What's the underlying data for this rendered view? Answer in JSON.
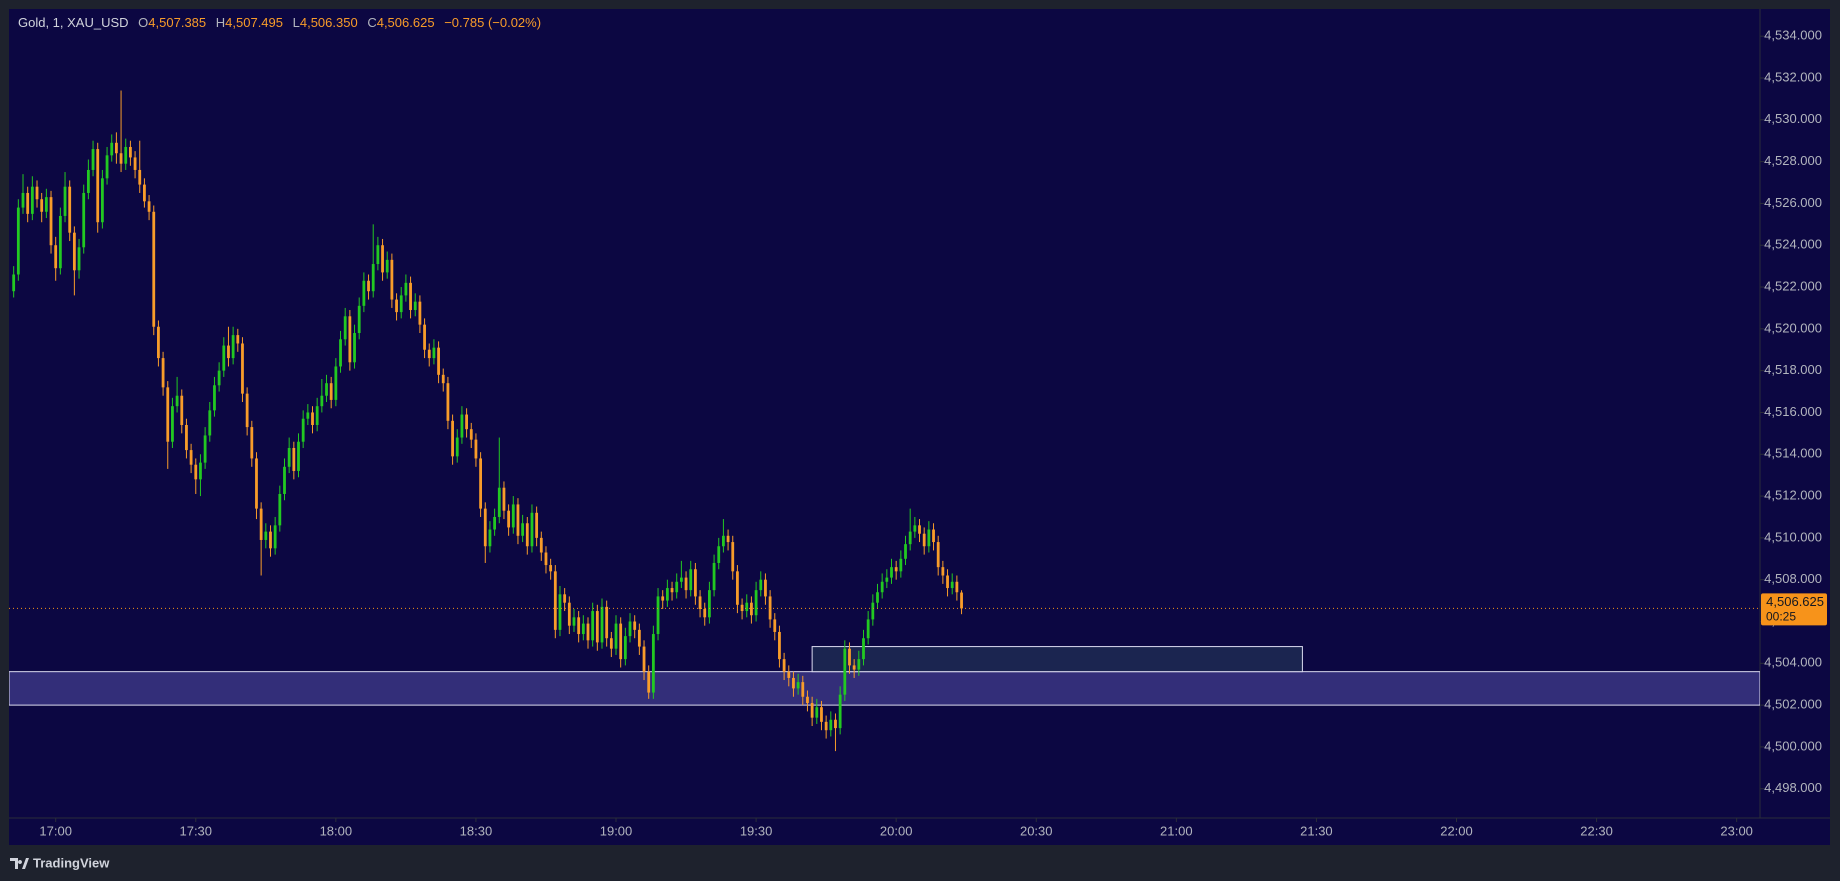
{
  "chart_data": {
    "type": "candlestick",
    "title": "Gold, 1, XAU_USD",
    "ohlc": [
      {
        "key": "O",
        "value": 4507.385,
        "label": "4,507.385"
      },
      {
        "key": "H",
        "value": 4507.495,
        "label": "4,507.495"
      },
      {
        "key": "L",
        "value": 4506.35,
        "label": "4,506.350"
      },
      {
        "key": "C",
        "value": 4506.625,
        "label": "4,506.625"
      }
    ],
    "change": {
      "value": -0.785,
      "label": "−0.785"
    },
    "change_pct": {
      "value": -0.02,
      "label": "(−0.02%)"
    },
    "up_color": "#22c922",
    "down_color": "#f89c2a",
    "x": [
      "16:51",
      "16:52",
      "16:53",
      "16:54",
      "16:55",
      "16:56",
      "16:57",
      "16:58",
      "16:59",
      "17:00",
      "17:01",
      "17:02",
      "17:03",
      "17:04",
      "17:05",
      "17:06",
      "17:07",
      "17:08",
      "17:09",
      "17:10",
      "17:11",
      "17:12",
      "17:13",
      "17:14",
      "17:15",
      "17:16",
      "17:17",
      "17:18",
      "17:19",
      "17:20",
      "17:21",
      "17:22",
      "17:23",
      "17:24",
      "17:25",
      "17:26",
      "17:27",
      "17:28",
      "17:29",
      "17:30",
      "17:31",
      "17:32",
      "17:33",
      "17:34",
      "17:35",
      "17:36",
      "17:37",
      "17:38",
      "17:39",
      "17:40",
      "17:41",
      "17:42",
      "17:43",
      "17:44",
      "17:45",
      "17:46",
      "17:47",
      "17:48",
      "17:49",
      "17:50",
      "17:51",
      "17:52",
      "17:53",
      "17:54",
      "17:55",
      "17:56",
      "17:57",
      "17:58",
      "17:59",
      "18:00",
      "18:01",
      "18:02",
      "18:03",
      "18:04",
      "18:05",
      "18:06",
      "18:07",
      "18:08",
      "18:09",
      "18:10",
      "18:11",
      "18:12",
      "18:13",
      "18:14",
      "18:15",
      "18:16",
      "18:17",
      "18:18",
      "18:19",
      "18:20",
      "18:21",
      "18:22",
      "18:23",
      "18:24",
      "18:25",
      "18:26",
      "18:27",
      "18:28",
      "18:29",
      "18:30",
      "18:31",
      "18:32",
      "18:33",
      "18:34",
      "18:35",
      "18:36",
      "18:37",
      "18:38",
      "18:39",
      "18:40",
      "18:41",
      "18:42",
      "18:43",
      "18:44",
      "18:45",
      "18:46",
      "18:47",
      "18:48",
      "18:49",
      "18:50",
      "18:51",
      "18:52",
      "18:53",
      "18:54",
      "18:55",
      "18:56",
      "18:57",
      "18:58",
      "18:59",
      "19:00",
      "19:01",
      "19:02",
      "19:03",
      "19:04",
      "19:05",
      "19:06",
      "19:07",
      "19:08",
      "19:09",
      "19:10",
      "19:11",
      "19:12",
      "19:13",
      "19:14",
      "19:15",
      "19:16",
      "19:17",
      "19:18",
      "19:19",
      "19:20",
      "19:21",
      "19:22",
      "19:23",
      "19:24",
      "19:25",
      "19:26",
      "19:27",
      "19:28",
      "19:29",
      "19:30",
      "19:31",
      "19:32",
      "19:33",
      "19:34",
      "19:35",
      "19:36",
      "19:37",
      "19:38",
      "19:39",
      "19:40",
      "19:41",
      "19:42",
      "19:43",
      "19:44",
      "19:45",
      "19:46",
      "19:47",
      "19:48",
      "19:49",
      "19:50",
      "19:51",
      "19:52",
      "19:53",
      "19:54",
      "19:55",
      "19:56",
      "19:57",
      "19:58",
      "19:59",
      "20:00",
      "20:01",
      "20:02",
      "20:03",
      "20:04",
      "20:05",
      "20:06",
      "20:07",
      "20:08",
      "20:09",
      "20:10",
      "20:11",
      "20:12",
      "20:13",
      "20:14"
    ],
    "open": [
      4521.8,
      4522.6,
      4525.8,
      4526.5,
      4525.5,
      4526.8,
      4526.2,
      4525.6,
      4526.3,
      4524.0,
      4522.9,
      4525.4,
      4526.8,
      4524.6,
      4522.8,
      4523.9,
      4526.5,
      4527.6,
      4528.6,
      4525.1,
      4527.2,
      4528.3,
      4528.9,
      4528.4,
      4527.9,
      4528.7,
      4528.2,
      4527.6,
      4526.9,
      4526.1,
      4525.6,
      4520.1,
      4518.6,
      4517.2,
      4514.6,
      4516.3,
      4516.8,
      4515.4,
      4514.2,
      4513.5,
      4512.8,
      4513.6,
      4514.9,
      4516.1,
      4517.3,
      4518.0,
      4519.2,
      4518.6,
      4519.7,
      4519.3,
      4516.9,
      4515.3,
      4513.8,
      4511.4,
      4509.9,
      4510.3,
      4509.5,
      4510.6,
      4512.1,
      4513.4,
      4514.3,
      4513.2,
      4514.6,
      4515.7,
      4516.0,
      4515.4,
      4516.3,
      4516.8,
      4517.4,
      4516.6,
      4518.2,
      4519.5,
      4520.6,
      4518.4,
      4519.8,
      4521.1,
      4522.3,
      4521.8,
      4523.1,
      4524.0,
      4522.7,
      4523.3,
      4521.4,
      4520.8,
      4521.6,
      4522.2,
      4520.9,
      4521.3,
      4520.2,
      4519.0,
      4518.6,
      4519.1,
      4517.8,
      4517.4,
      4515.6,
      4513.9,
      4514.8,
      4515.9,
      4515.2,
      4514.7,
      4513.8,
      4511.4,
      4509.6,
      4510.4,
      4511.0,
      4512.4,
      4511.3,
      4510.5,
      4511.6,
      4510.1,
      4510.7,
      4509.6,
      4511.2,
      4510.0,
      4509.3,
      4508.7,
      4508.4,
      4505.6,
      4507.3,
      4506.9,
      4505.8,
      4506.2,
      4505.4,
      4505.9,
      4505.1,
      4506.5,
      4505.0,
      4506.7,
      4505.2,
      4504.7,
      4505.9,
      4504.2,
      4505.3,
      4506.0,
      4505.6,
      4504.8,
      4503.6,
      4502.6,
      4505.4,
      4507.2,
      4507.0,
      4507.6,
      4507.4,
      4507.9,
      4508.1,
      4507.5,
      4508.5,
      4507.2,
      4506.6,
      4506.2,
      4507.5,
      4508.8,
      4509.6,
      4510.1,
      4509.8,
      4508.4,
      4506.8,
      4506.5,
      4506.9,
      4506.3,
      4507.5,
      4508.0,
      4507.2,
      4506.1,
      4505.5,
      4504.2,
      4503.6,
      4503.3,
      4502.8,
      4503.1,
      4502.4,
      4502.1,
      4501.4,
      4501.9,
      4501.2,
      4500.8,
      4501.3,
      4500.9,
      4502.5,
      4504.7,
      4503.9,
      4503.7,
      4504.2,
      4505.2,
      4506.1,
      4506.9,
      4507.4,
      4507.9,
      4508.1,
      4508.6,
      4508.4,
      4509.0,
      4509.7,
      4510.3,
      4510.6,
      4510.2,
      4509.6,
      4510.4,
      4509.8,
      4508.6,
      4508.2,
      4507.6,
      4507.9,
      4507.385
    ],
    "high": [
      4523.0,
      4526.2,
      4527.4,
      4526.8,
      4527.3,
      4527.1,
      4526.5,
      4526.7,
      4526.6,
      4524.4,
      4525.8,
      4527.5,
      4527.1,
      4524.9,
      4524.3,
      4526.9,
      4528.1,
      4529.0,
      4528.9,
      4527.6,
      4528.7,
      4529.3,
      4529.4,
      4531.4,
      4529.1,
      4529.0,
      4528.5,
      4529.0,
      4527.2,
      4526.4,
      4525.9,
      4520.4,
      4518.9,
      4517.5,
      4516.7,
      4517.7,
      4517.1,
      4515.7,
      4514.5,
      4513.8,
      4514.0,
      4515.3,
      4516.5,
      4517.7,
      4518.4,
      4519.6,
      4520.1,
      4520.1,
      4520.0,
      4519.6,
      4517.2,
      4515.6,
      4514.1,
      4511.7,
      4510.7,
      4510.6,
      4511.0,
      4512.5,
      4513.8,
      4514.8,
      4514.6,
      4515.0,
      4516.1,
      4516.4,
      4516.3,
      4516.7,
      4517.6,
      4517.8,
      4517.7,
      4518.6,
      4519.9,
      4521.0,
      4520.9,
      4520.2,
      4521.5,
      4522.7,
      4522.6,
      4525.0,
      4524.4,
      4524.3,
      4523.7,
      4523.6,
      4521.7,
      4522.0,
      4522.6,
      4522.5,
      4521.7,
      4521.6,
      4520.5,
      4519.3,
      4519.5,
      4519.4,
      4518.1,
      4517.7,
      4515.9,
      4515.2,
      4516.3,
      4516.2,
      4515.5,
      4515.0,
      4514.1,
      4511.7,
      4510.8,
      4511.4,
      4514.8,
      4512.7,
      4511.6,
      4512.0,
      4511.9,
      4511.1,
      4511.0,
      4511.6,
      4511.5,
      4510.3,
      4509.6,
      4509.0,
      4508.7,
      4507.7,
      4507.6,
      4507.2,
      4506.6,
      4506.5,
      4506.3,
      4506.2,
      4506.9,
      4506.8,
      4507.1,
      4507.0,
      4505.5,
      4506.3,
      4506.2,
      4505.7,
      4506.4,
      4506.3,
      4505.9,
      4505.1,
      4503.9,
      4505.8,
      4507.6,
      4507.5,
      4508.0,
      4507.9,
      4508.3,
      4508.9,
      4508.4,
      4508.9,
      4508.8,
      4507.5,
      4506.9,
      4507.9,
      4509.2,
      4510.0,
      4510.9,
      4510.4,
      4510.1,
      4508.7,
      4507.1,
      4507.3,
      4507.2,
      4507.9,
      4508.4,
      4508.3,
      4507.5,
      4506.4,
      4505.8,
      4504.5,
      4503.9,
      4503.6,
      4503.5,
      4503.4,
      4502.7,
      4502.4,
      4502.3,
      4502.2,
      4501.5,
      4501.7,
      4501.6,
      4502.9,
      4505.1,
      4505.0,
      4504.2,
      4504.6,
      4505.6,
      4506.5,
      4507.3,
      4507.8,
      4508.3,
      4508.5,
      4509.0,
      4508.9,
      4509.4,
      4510.1,
      4511.4,
      4511.0,
      4510.9,
      4510.5,
      4510.8,
      4510.7,
      4510.1,
      4508.9,
      4508.5,
      4508.3,
      4508.2,
      4507.495
    ],
    "low": [
      4521.5,
      4522.3,
      4525.5,
      4525.1,
      4525.2,
      4525.8,
      4525.1,
      4525.3,
      4523.6,
      4522.3,
      4522.6,
      4525.1,
      4524.2,
      4521.6,
      4522.4,
      4523.6,
      4526.2,
      4527.3,
      4524.6,
      4524.8,
      4526.9,
      4528.0,
      4527.9,
      4527.5,
      4527.6,
      4527.8,
      4527.2,
      4526.5,
      4525.8,
      4525.2,
      4519.7,
      4518.2,
      4516.8,
      4513.3,
      4514.3,
      4516.0,
      4515.0,
      4513.8,
      4513.1,
      4512.1,
      4512.0,
      4513.3,
      4514.6,
      4515.8,
      4517.0,
      4517.7,
      4518.2,
      4518.3,
      4518.9,
      4516.5,
      4514.9,
      4513.4,
      4510.9,
      4508.2,
      4509.5,
      4509.1,
      4509.2,
      4510.3,
      4511.8,
      4513.1,
      4512.8,
      4512.9,
      4514.3,
      4515.4,
      4515.0,
      4515.1,
      4516.0,
      4516.5,
      4516.2,
      4516.3,
      4517.9,
      4519.2,
      4518.0,
      4518.1,
      4519.5,
      4520.8,
      4521.4,
      4521.5,
      4522.8,
      4522.3,
      4522.4,
      4521.0,
      4520.4,
      4520.5,
      4521.3,
      4520.5,
      4520.6,
      4519.8,
      4518.6,
      4518.2,
      4518.3,
      4517.4,
      4517.0,
      4515.2,
      4513.5,
      4513.6,
      4514.5,
      4514.8,
      4514.3,
      4513.4,
      4511.0,
      4508.8,
      4509.3,
      4510.1,
      4510.7,
      4510.9,
      4510.1,
      4510.2,
      4509.7,
      4509.8,
      4509.2,
      4509.3,
      4509.6,
      4508.9,
      4508.3,
      4508.0,
      4505.2,
      4505.3,
      4506.5,
      4505.4,
      4505.5,
      4505.0,
      4505.1,
      4504.7,
      4504.8,
      4504.6,
      4504.7,
      4504.8,
      4504.3,
      4504.4,
      4503.8,
      4503.9,
      4505.0,
      4505.2,
      4504.4,
      4503.2,
      4502.3,
      4502.3,
      4505.1,
      4506.6,
      4506.7,
      4507.0,
      4507.1,
      4507.6,
      4507.1,
      4507.2,
      4506.8,
      4506.2,
      4505.8,
      4505.9,
      4507.2,
      4508.5,
      4509.3,
      4509.4,
      4508.0,
      4506.4,
      4506.1,
      4506.2,
      4505.9,
      4506.0,
      4507.2,
      4506.8,
      4505.7,
      4505.1,
      4503.8,
      4503.2,
      4502.9,
      4502.4,
      4502.5,
      4502.0,
      4501.7,
      4501.0,
      4501.1,
      4500.8,
      4500.4,
      4500.5,
      4499.8,
      4500.6,
      4502.2,
      4503.5,
      4503.3,
      4503.4,
      4503.9,
      4504.9,
      4505.8,
      4506.6,
      4507.1,
      4507.6,
      4507.8,
      4508.0,
      4508.1,
      4508.7,
      4509.4,
      4510.0,
      4509.8,
      4509.2,
      4509.3,
      4509.4,
      4508.2,
      4507.8,
      4507.2,
      4507.3,
      4507.0,
      4506.35
    ],
    "close": [
      4522.6,
      4525.8,
      4526.5,
      4525.5,
      4526.8,
      4526.2,
      4525.6,
      4526.3,
      4524.0,
      4522.9,
      4525.4,
      4526.8,
      4524.6,
      4522.8,
      4523.9,
      4526.5,
      4527.6,
      4528.6,
      4525.1,
      4527.2,
      4528.3,
      4528.9,
      4528.4,
      4527.9,
      4528.7,
      4528.2,
      4527.6,
      4526.9,
      4526.1,
      4525.6,
      4520.1,
      4518.6,
      4517.2,
      4514.6,
      4516.3,
      4516.8,
      4515.4,
      4514.2,
      4513.5,
      4512.8,
      4513.6,
      4514.9,
      4516.1,
      4517.3,
      4518.0,
      4519.2,
      4518.6,
      4519.7,
      4519.3,
      4516.9,
      4515.3,
      4513.8,
      4511.4,
      4509.9,
      4510.3,
      4509.5,
      4510.6,
      4512.1,
      4513.4,
      4514.3,
      4513.2,
      4514.6,
      4515.7,
      4516.0,
      4515.4,
      4516.3,
      4516.8,
      4517.4,
      4516.6,
      4518.2,
      4519.5,
      4520.6,
      4518.4,
      4519.8,
      4521.1,
      4522.3,
      4521.8,
      4523.1,
      4524.0,
      4522.7,
      4523.3,
      4521.4,
      4520.8,
      4521.6,
      4522.2,
      4520.9,
      4521.3,
      4520.2,
      4519.0,
      4518.6,
      4519.1,
      4517.8,
      4517.4,
      4515.6,
      4513.9,
      4514.8,
      4515.9,
      4515.2,
      4514.7,
      4513.8,
      4511.4,
      4509.6,
      4510.4,
      4511.0,
      4512.4,
      4511.3,
      4510.5,
      4511.6,
      4510.1,
      4510.7,
      4509.6,
      4511.2,
      4510.0,
      4509.3,
      4508.7,
      4508.4,
      4505.6,
      4507.3,
      4506.9,
      4505.8,
      4506.2,
      4505.4,
      4505.9,
      4505.1,
      4506.5,
      4505.0,
      4506.7,
      4505.2,
      4504.7,
      4505.9,
      4504.2,
      4505.3,
      4506.0,
      4505.6,
      4504.8,
      4503.6,
      4502.6,
      4505.4,
      4507.2,
      4507.0,
      4507.6,
      4507.4,
      4507.9,
      4508.1,
      4507.5,
      4508.5,
      4507.2,
      4506.6,
      4506.2,
      4507.5,
      4508.8,
      4509.6,
      4510.1,
      4509.8,
      4508.4,
      4506.8,
      4506.5,
      4506.9,
      4506.3,
      4507.5,
      4508.0,
      4507.2,
      4506.1,
      4505.5,
      4504.2,
      4503.6,
      4503.3,
      4502.8,
      4503.1,
      4502.4,
      4502.1,
      4501.4,
      4501.9,
      4501.2,
      4500.8,
      4501.3,
      4500.9,
      4502.5,
      4504.7,
      4503.9,
      4503.7,
      4504.2,
      4505.2,
      4506.1,
      4506.9,
      4507.4,
      4507.9,
      4508.1,
      4508.6,
      4508.4,
      4509.0,
      4509.7,
      4510.3,
      4510.6,
      4510.2,
      4509.6,
      4510.4,
      4509.8,
      4508.6,
      4508.2,
      4507.6,
      4507.9,
      4507.4,
      4506.625
    ],
    "xlim": [
      "16:50",
      "23:05"
    ],
    "xticks": [
      "17:00",
      "17:30",
      "18:00",
      "18:30",
      "19:00",
      "19:30",
      "20:00",
      "20:30",
      "21:00",
      "21:30",
      "22:00",
      "22:30",
      "23:00"
    ],
    "ylim": [
      4496.6,
      4535.3
    ],
    "yticks": [
      {
        "value": 4498,
        "label": "4,498.000"
      },
      {
        "value": 4500,
        "label": "4,500.000"
      },
      {
        "value": 4502,
        "label": "4,502.000"
      },
      {
        "value": 4504,
        "label": "4,504.000"
      },
      {
        "value": 4506,
        "label": "4,506.000"
      },
      {
        "value": 4508,
        "label": "4,508.000"
      },
      {
        "value": 4510,
        "label": "4,510.000"
      },
      {
        "value": 4512,
        "label": "4,512.000"
      },
      {
        "value": 4514,
        "label": "4,514.000"
      },
      {
        "value": 4516,
        "label": "4,516.000"
      },
      {
        "value": 4518,
        "label": "4,518.000"
      },
      {
        "value": 4520,
        "label": "4,520.000"
      },
      {
        "value": 4522,
        "label": "4,522.000"
      },
      {
        "value": 4524,
        "label": "4,524.000"
      },
      {
        "value": 4526,
        "label": "4,526.000"
      },
      {
        "value": 4528,
        "label": "4,528.000"
      },
      {
        "value": 4530,
        "label": "4,530.000"
      },
      {
        "value": 4532,
        "label": "4,532.000"
      },
      {
        "value": 4534,
        "label": "4,534.000"
      }
    ],
    "grid": false,
    "zones": [
      {
        "x0": "16:50",
        "x1": "23:05",
        "y0": 4502.0,
        "y1": 4503.6,
        "fill": "#3b3582"
      },
      {
        "x0": "19:42",
        "x1": "21:27",
        "y0": 4503.6,
        "y1": 4504.8,
        "fill": "#1f2a52"
      }
    ],
    "last_price": {
      "value": 4506.625,
      "label": "4,506.625",
      "color": "#f7931a"
    },
    "countdown": "00:25",
    "brand": "TradingView"
  }
}
